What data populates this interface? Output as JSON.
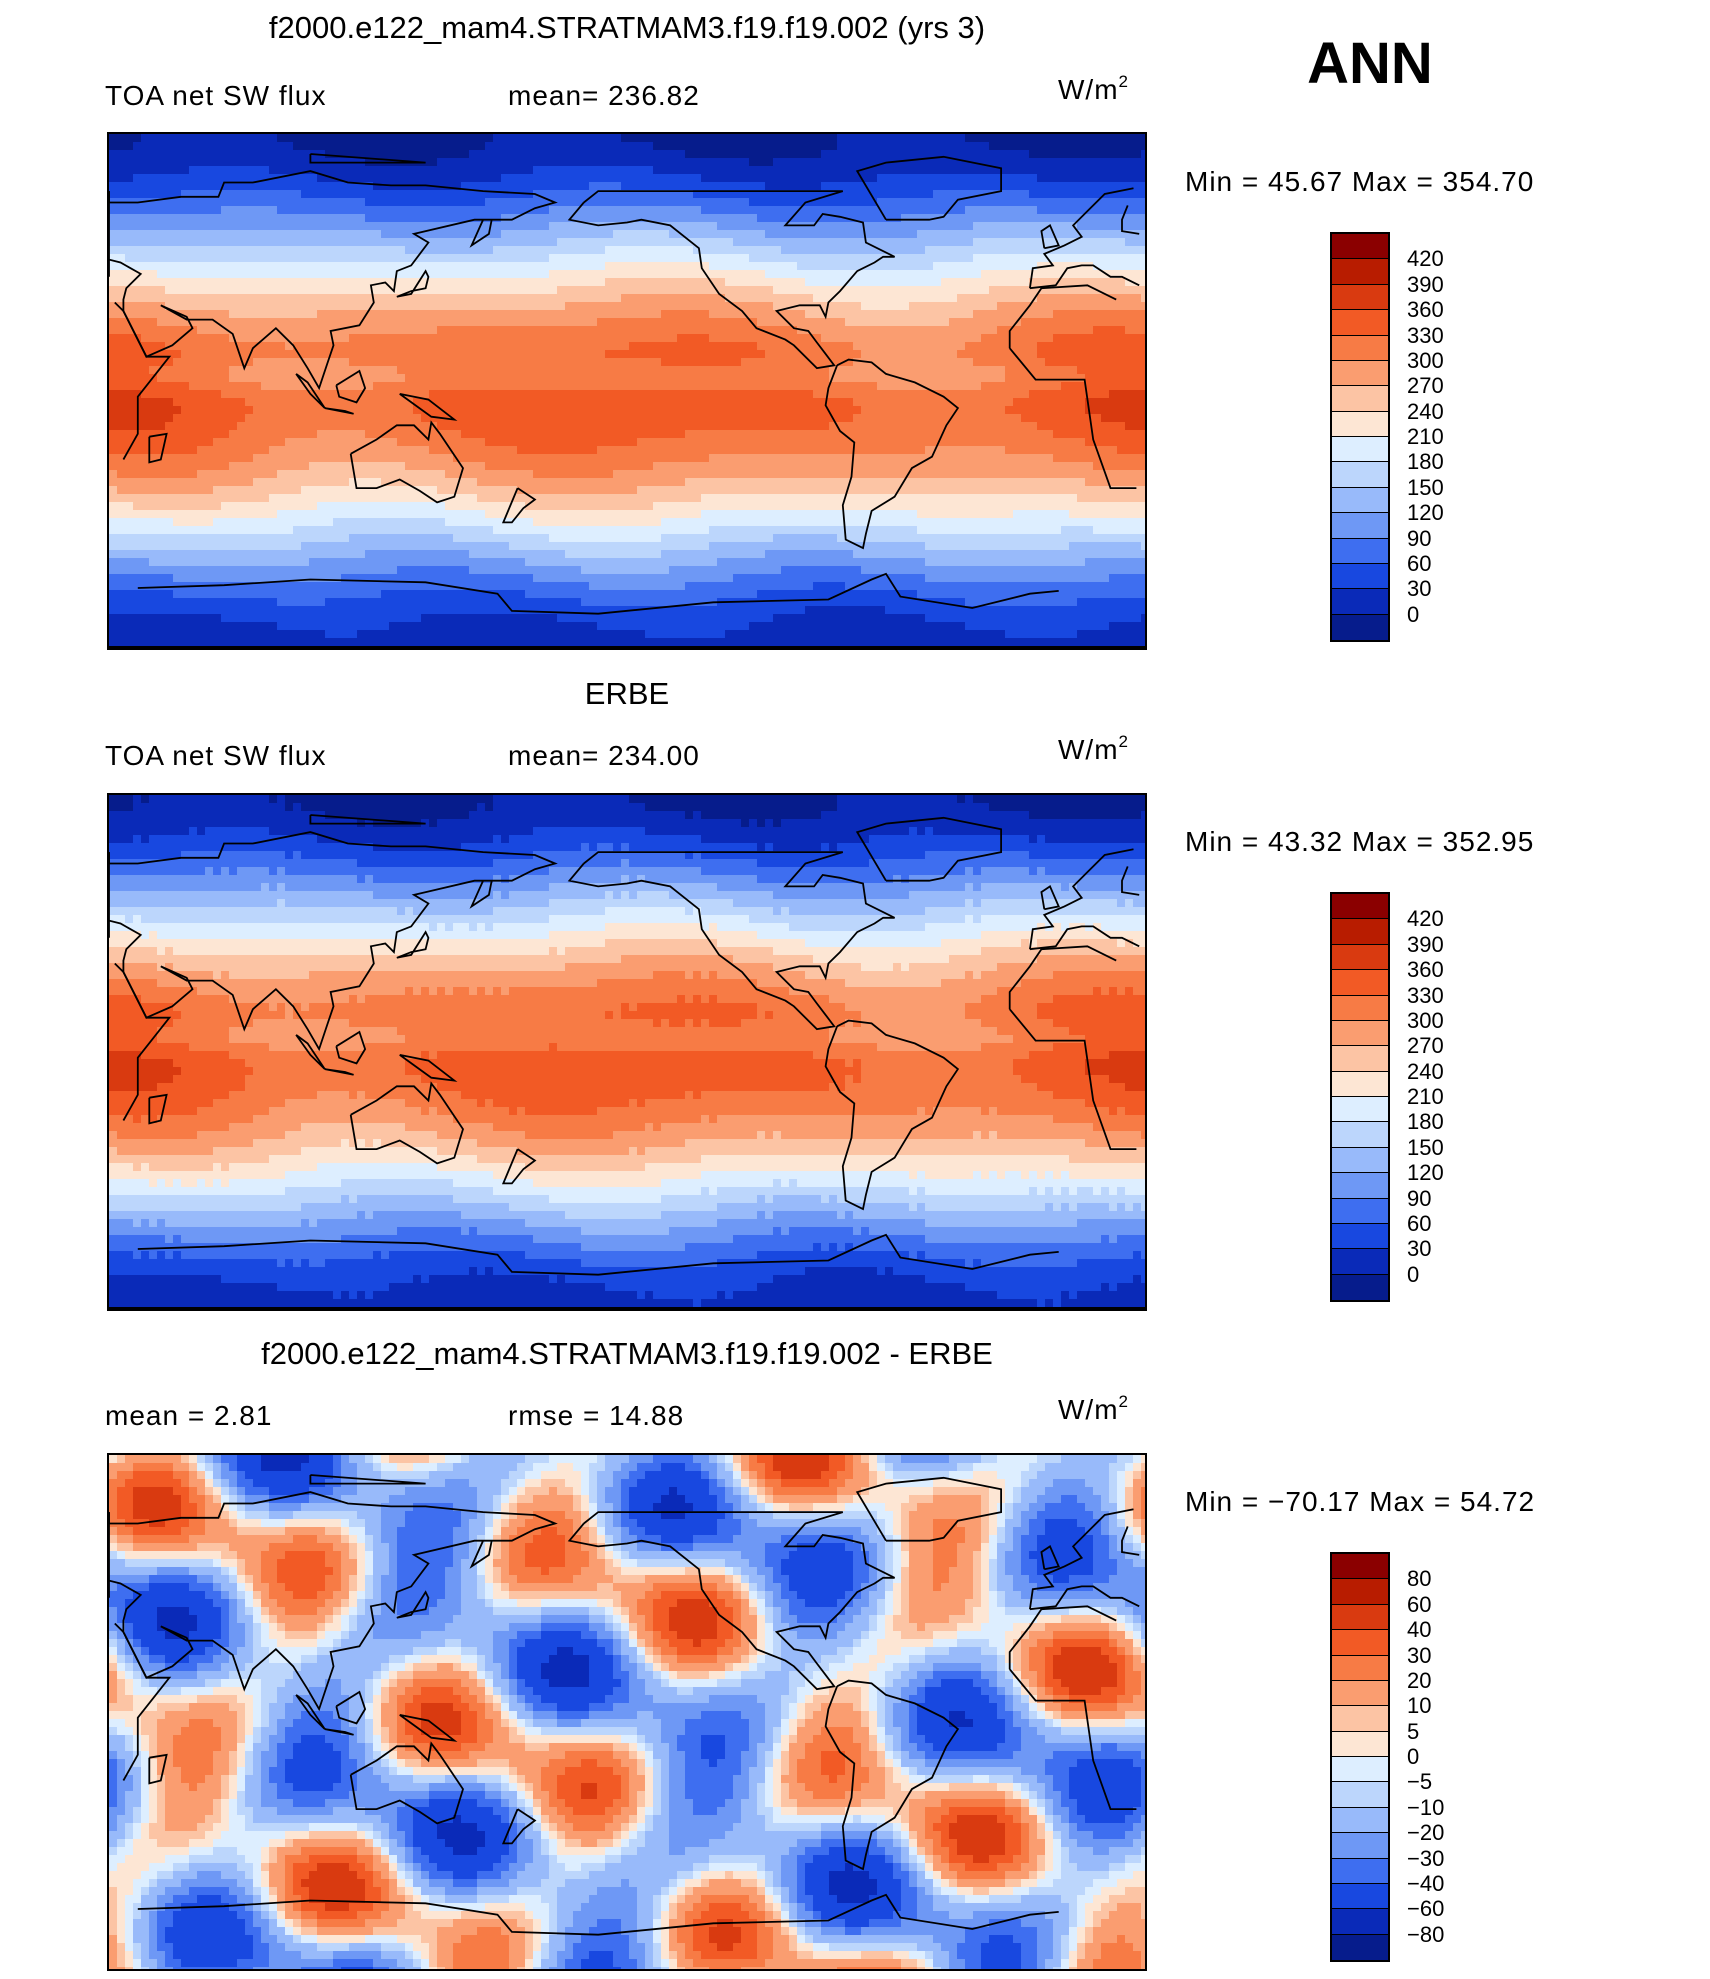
{
  "season": "ANN",
  "panels": [
    {
      "title": "f2000.e122_mam4.STRATMAM3.f19.f19.002 (yrs 3)",
      "left_label": "TOA net SW flux",
      "mid_label": "mean= 236.82",
      "units_base": "W/m",
      "units_exp": "2",
      "minmax": "Min =   45.67 Max = 354.70",
      "colorbar_labels": [
        "420",
        "390",
        "360",
        "330",
        "300",
        "270",
        "240",
        "210",
        "180",
        "150",
        "120",
        "90",
        "60",
        "30",
        "0"
      ],
      "colorbar_colors": [
        "#8b0000",
        "#b81c00",
        "#d93a10",
        "#f25a25",
        "#f77b45",
        "#fa9d70",
        "#fcc4a4",
        "#fde6d4",
        "#ddeeff",
        "#bcd6fc",
        "#98bafa",
        "#6e98f5",
        "#3e6ef0",
        "#1848e0",
        "#0a2ab8",
        "#061c8c"
      ],
      "field": "mean"
    },
    {
      "title": "ERBE",
      "left_label": "TOA net SW flux",
      "mid_label": "mean= 234.00",
      "units_base": "W/m",
      "units_exp": "2",
      "minmax": "Min =   43.32 Max = 352.95",
      "colorbar_labels": [
        "420",
        "390",
        "360",
        "330",
        "300",
        "270",
        "240",
        "210",
        "180",
        "150",
        "120",
        "90",
        "60",
        "30",
        "0"
      ],
      "colorbar_colors": [
        "#8b0000",
        "#b81c00",
        "#d93a10",
        "#f25a25",
        "#f77b45",
        "#fa9d70",
        "#fcc4a4",
        "#fde6d4",
        "#ddeeff",
        "#bcd6fc",
        "#98bafa",
        "#6e98f5",
        "#3e6ef0",
        "#1848e0",
        "#0a2ab8",
        "#061c8c"
      ],
      "field": "mean"
    },
    {
      "title": "f2000.e122_mam4.STRATMAM3.f19.f19.002 - ERBE",
      "left_label": "mean =    2.81",
      "mid_label": "rmse =   14.88",
      "units_base": "W/m",
      "units_exp": "2",
      "minmax": "Min = −70.17 Max =   54.72",
      "colorbar_labels": [
        "80",
        "60",
        "40",
        "30",
        "20",
        "10",
        "5",
        "0",
        "−5",
        "−10",
        "−20",
        "−30",
        "−40",
        "−60",
        "−80"
      ],
      "colorbar_colors": [
        "#8b0000",
        "#b81c00",
        "#d93a10",
        "#f25a25",
        "#f77b45",
        "#fa9d70",
        "#fcc4a4",
        "#fde6d4",
        "#ddeeff",
        "#bcd6fc",
        "#98bafa",
        "#6e98f5",
        "#3e6ef0",
        "#1848e0",
        "#0a2ab8",
        "#061c8c"
      ],
      "field": "diff"
    }
  ]
}
